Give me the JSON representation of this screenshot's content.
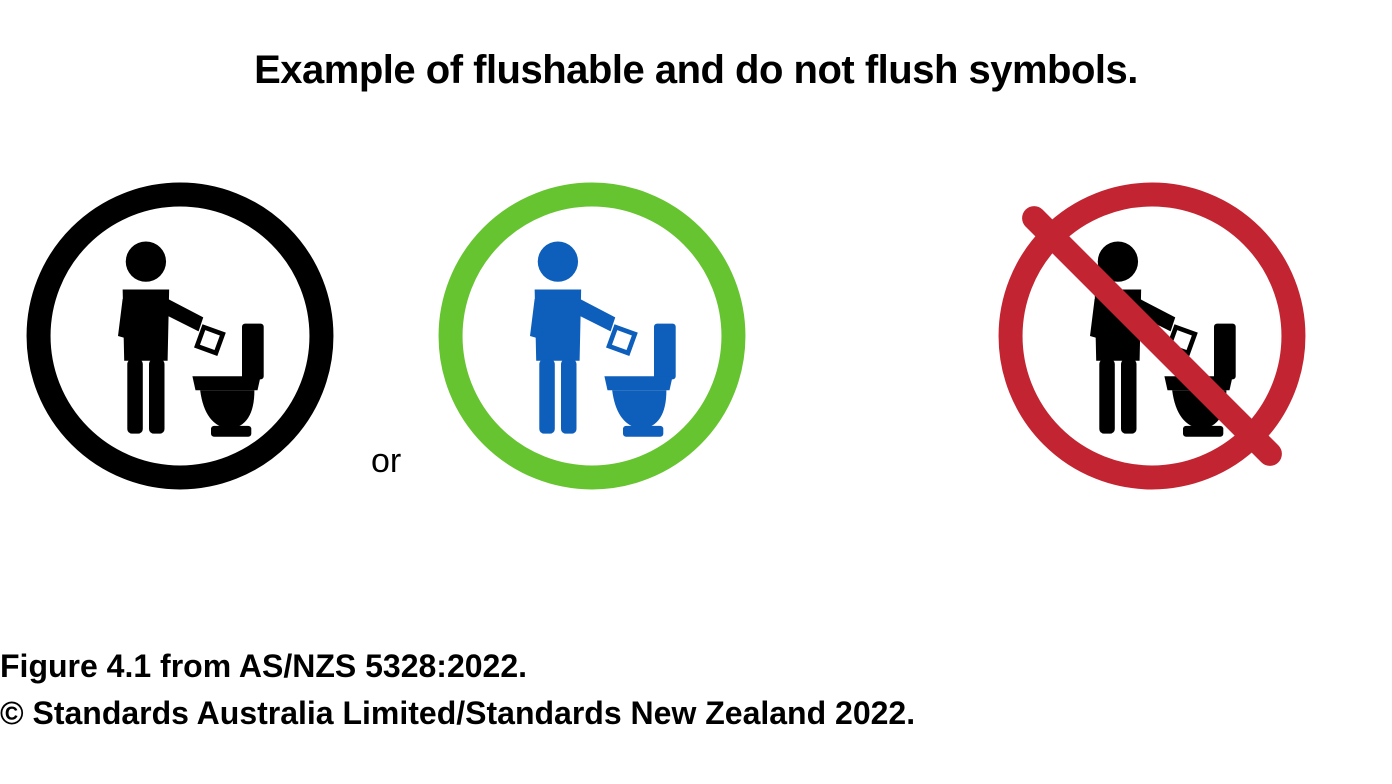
{
  "title": "Example of  flushable and do not flush symbols.",
  "or_label": "or",
  "footer": {
    "line1": "Figure 4.1 from AS/NZS 5328:2022.",
    "line2": "© Standards Australia Limited/Standards New Zealand 2022."
  },
  "symbols": {
    "flushable_black": {
      "ring_color": "#000000",
      "figure_color": "#000000",
      "diameter": 310,
      "ring_stroke": 24
    },
    "flushable_green": {
      "ring_color": "#66c430",
      "figure_color": "#0d5fbb",
      "diameter": 310,
      "ring_stroke": 24
    },
    "do_not_flush": {
      "ring_color": "#c22531",
      "figure_color": "#000000",
      "diameter": 310,
      "ring_stroke": 24
    }
  },
  "typography": {
    "title_fontsize": 40,
    "or_fontsize": 34,
    "footer_fontsize": 32
  },
  "background_color": "#ffffff"
}
